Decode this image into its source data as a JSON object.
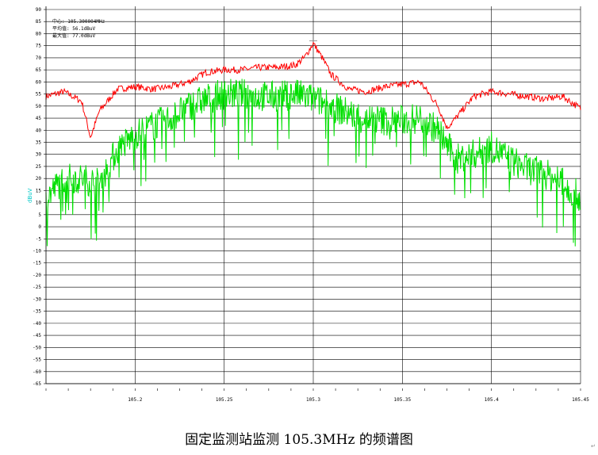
{
  "caption": "固定监测站监测 105.3MHz 的频谱图",
  "paragraph_mark": "↵",
  "chart_data": {
    "type": "line",
    "title": "",
    "xlabel": "",
    "ylabel": "dBuV",
    "xlim": [
      105.15,
      105.45
    ],
    "ylim": [
      -65,
      90
    ],
    "x_ticks": [
      105.2,
      105.25,
      105.3,
      105.35,
      105.4,
      105.45
    ],
    "x_tick_labels": [
      "105.2",
      "105.25",
      "105.3",
      "105.35",
      "105.4",
      "105.45"
    ],
    "y_ticks": [
      90,
      85,
      80,
      75,
      70,
      65,
      60,
      55,
      50,
      45,
      40,
      35,
      30,
      25,
      20,
      15,
      10,
      5,
      0,
      -5,
      -10,
      -15,
      -20,
      -25,
      -30,
      -35,
      -40,
      -45,
      -50,
      -55,
      -60,
      -65
    ],
    "grid": true,
    "annotations": {
      "center_freq": "中心: 105.300004MHz",
      "avg_level": "平均值: 56.1dBuV",
      "max_level": "最大值: 77.0dBuV"
    },
    "series": [
      {
        "name": "",
        "color": "#ff0000",
        "x": [
          105.15,
          105.16,
          105.17,
          105.175,
          105.18,
          105.19,
          105.2,
          105.21,
          105.22,
          105.23,
          105.24,
          105.25,
          105.26,
          105.27,
          105.28,
          105.29,
          105.295,
          105.3,
          105.305,
          105.31,
          105.32,
          105.33,
          105.34,
          105.35,
          105.36,
          105.37,
          105.375,
          105.38,
          105.39,
          105.4,
          105.41,
          105.42,
          105.43,
          105.44,
          105.45
        ],
        "values": [
          54,
          56,
          52,
          37,
          48,
          57,
          58,
          57,
          58,
          60,
          64,
          65,
          65,
          66,
          66,
          67,
          70,
          76,
          70,
          63,
          57,
          56,
          58,
          59,
          60,
          50,
          41,
          45,
          54,
          56,
          55,
          54,
          53,
          54,
          49
        ]
      },
      {
        "name": "",
        "color": "#00e000",
        "x": [
          105.15,
          105.16,
          105.17,
          105.18,
          105.19,
          105.2,
          105.21,
          105.22,
          105.23,
          105.24,
          105.25,
          105.26,
          105.27,
          105.28,
          105.29,
          105.3,
          105.31,
          105.32,
          105.33,
          105.34,
          105.35,
          105.36,
          105.37,
          105.38,
          105.39,
          105.4,
          105.41,
          105.42,
          105.43,
          105.44,
          105.45
        ],
        "values": [
          12,
          20,
          20,
          18,
          32,
          38,
          42,
          45,
          50,
          53,
          55,
          55,
          54,
          54,
          55,
          53,
          50,
          47,
          45,
          44,
          44,
          45,
          40,
          28,
          30,
          33,
          28,
          24,
          22,
          18,
          12
        ]
      }
    ]
  }
}
